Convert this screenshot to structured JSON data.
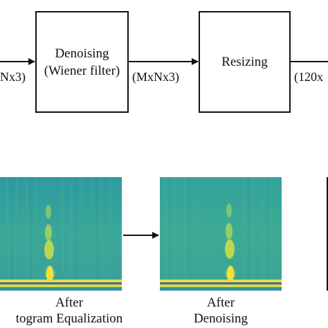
{
  "pipeline": {
    "input_dim": "Nx3)",
    "denoise_box": {
      "line1": "Denoising",
      "line2": "(Wiener filter)"
    },
    "mid_dim": "(MxNx3)",
    "resize_box": {
      "title": "Resizing"
    },
    "output_dim": "(120x"
  },
  "examples": {
    "hist_caption": {
      "line1": "After",
      "line2": "togram Equalization"
    },
    "denoise_caption": {
      "line1": "After",
      "line2": "Denoising"
    }
  },
  "colors": {
    "spectrogram_base": "#2f9a9f",
    "spectrogram_green": "#4fb88a",
    "spectrogram_yellow": "#e8df3a",
    "spectrogram_blue": "#3a6fa0",
    "line": "#111111"
  }
}
